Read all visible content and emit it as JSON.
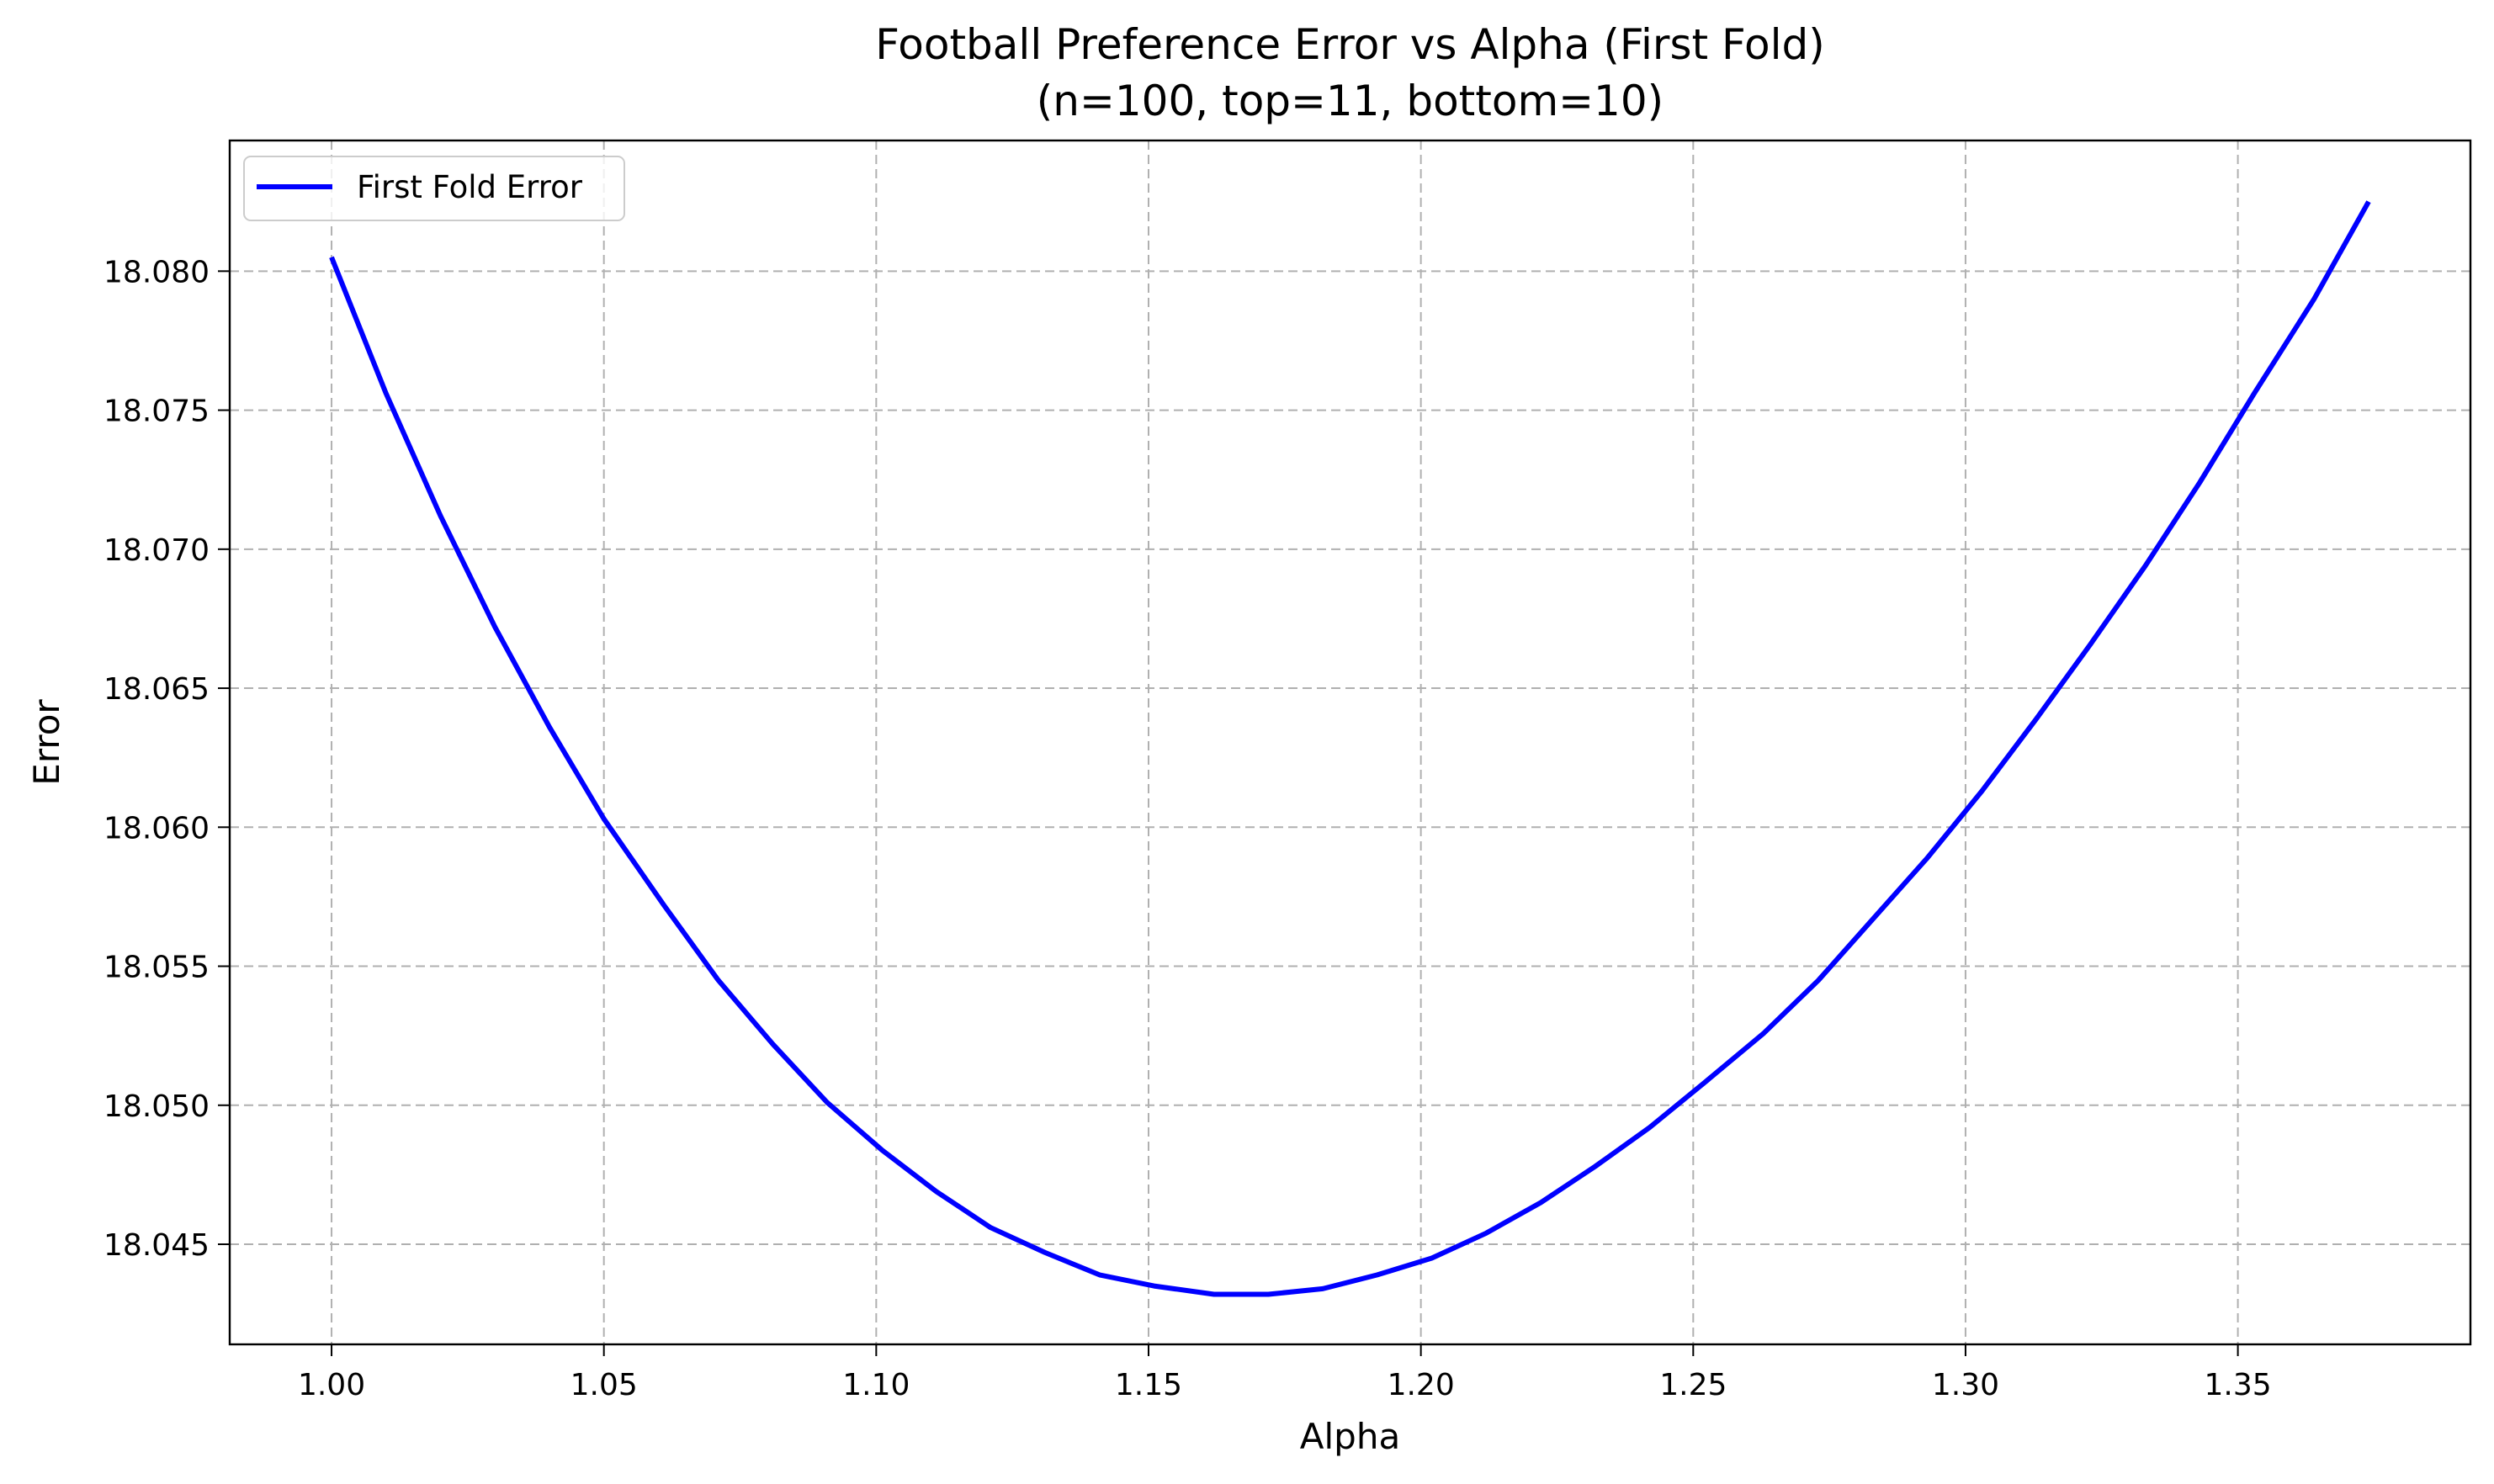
{
  "chart_data": {
    "type": "line",
    "title_line1": "Football Preference Error vs Alpha (First Fold)",
    "title_line2": "(n=100, top=11, bottom=10)",
    "xlabel": "Alpha",
    "ylabel": "Error",
    "xlim": [
      0.9813,
      1.3927
    ],
    "ylim": [
      18.0414,
      18.0847
    ],
    "xticks": [
      1.0,
      1.05,
      1.1,
      1.15,
      1.2,
      1.25,
      1.3,
      1.35
    ],
    "xtick_labels": [
      "1.00",
      "1.05",
      "1.10",
      "1.15",
      "1.20",
      "1.25",
      "1.30",
      "1.35"
    ],
    "yticks": [
      18.045,
      18.05,
      18.055,
      18.06,
      18.065,
      18.07,
      18.075,
      18.08
    ],
    "ytick_labels": [
      "18.045",
      "18.050",
      "18.055",
      "18.060",
      "18.065",
      "18.070",
      "18.075",
      "18.080"
    ],
    "grid": true,
    "legend_position": "top-left",
    "series": [
      {
        "name": "First Fold Error",
        "color": "#0000ff",
        "x": [
          1.0,
          1.01,
          1.02,
          1.03,
          1.04,
          1.05,
          1.061,
          1.071,
          1.081,
          1.091,
          1.101,
          1.111,
          1.121,
          1.131,
          1.141,
          1.151,
          1.162,
          1.172,
          1.182,
          1.192,
          1.202,
          1.212,
          1.222,
          1.232,
          1.242,
          1.252,
          1.263,
          1.273,
          1.283,
          1.293,
          1.303,
          1.313,
          1.323,
          1.333,
          1.343,
          1.353,
          1.364,
          1.374
        ],
        "y": [
          18.0805,
          18.0756,
          18.0712,
          18.0672,
          18.0636,
          18.0603,
          18.0572,
          18.0545,
          18.0522,
          18.0501,
          18.0484,
          18.0469,
          18.0456,
          18.0447,
          18.0439,
          18.0435,
          18.0432,
          18.0432,
          18.0434,
          18.0439,
          18.0445,
          18.0454,
          18.0465,
          18.0478,
          18.0492,
          18.0508,
          18.0526,
          18.0545,
          18.0567,
          18.0589,
          18.0613,
          18.0639,
          18.0666,
          18.0694,
          18.0724,
          18.0756,
          18.079,
          18.0825
        ]
      }
    ]
  }
}
